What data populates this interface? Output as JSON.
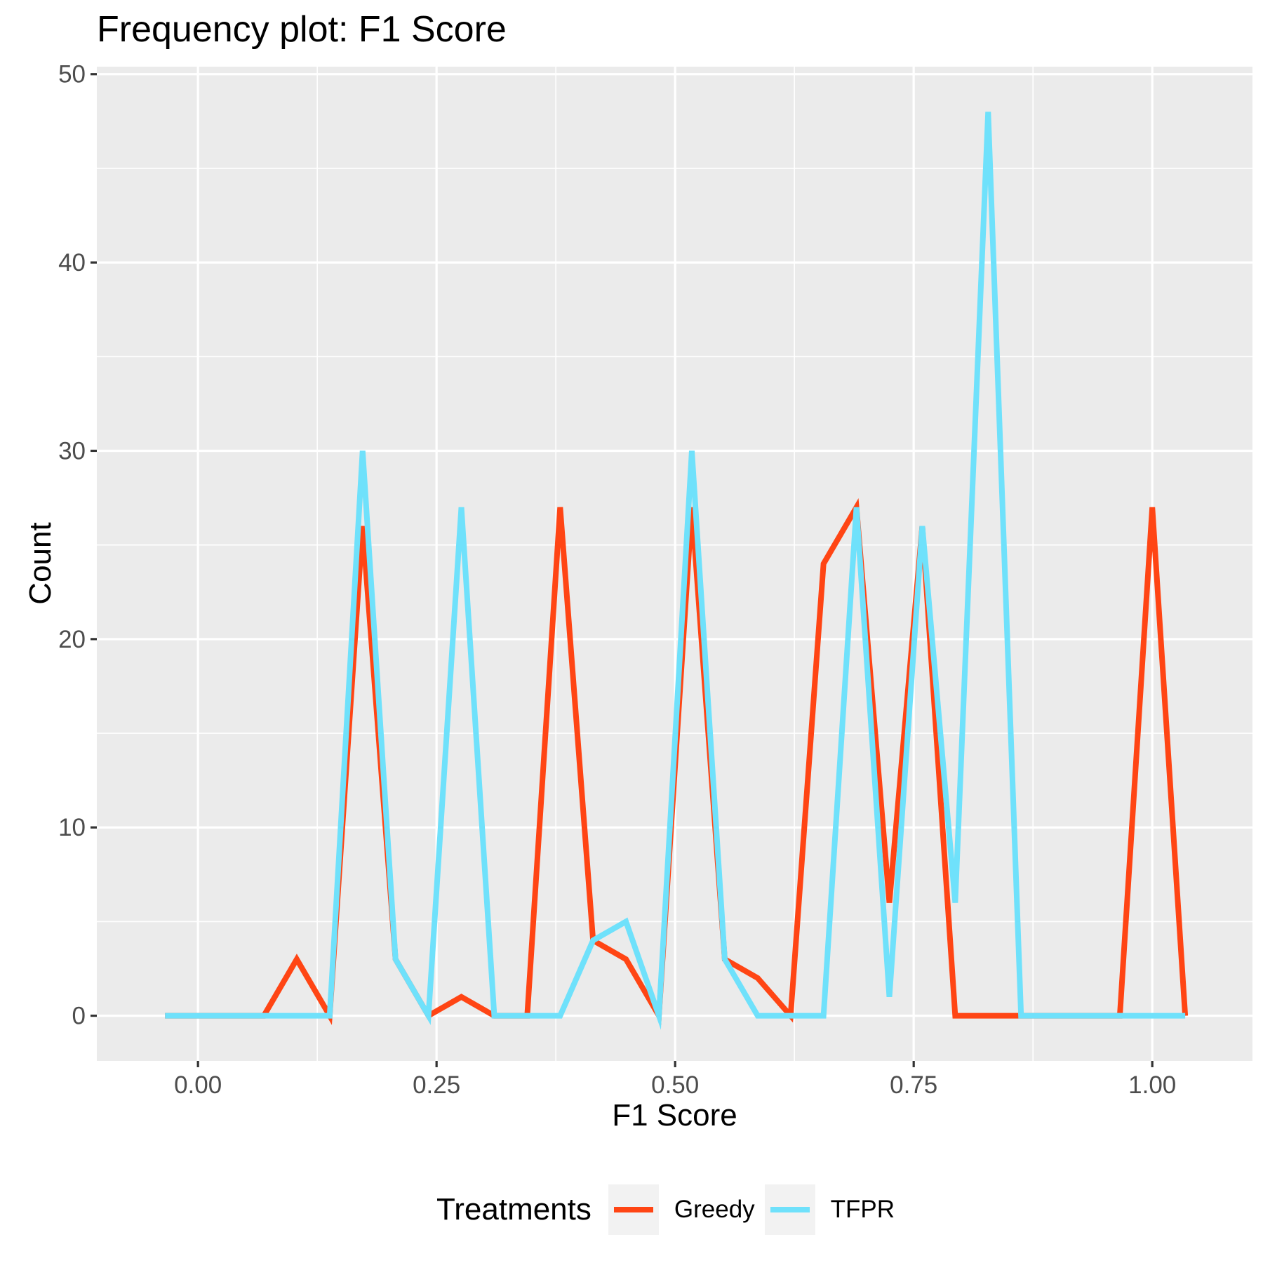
{
  "chart_data": {
    "type": "line",
    "title": "Frequency plot: F1 Score",
    "xlabel": "F1 Score",
    "ylabel": "Count",
    "xlim": [
      -0.106,
      1.105
    ],
    "ylim": [
      -2.4,
      50.4
    ],
    "x_ticks": [
      0.0,
      0.25,
      0.5,
      0.75,
      1.0
    ],
    "x_tick_labels": [
      "0.00",
      "0.25",
      "0.50",
      "0.75",
      "1.00"
    ],
    "y_ticks": [
      0,
      10,
      20,
      30,
      40,
      50
    ],
    "y_tick_labels": [
      "0",
      "10",
      "20",
      "30",
      "40",
      "50"
    ],
    "grid": true,
    "legend": {
      "title": "Treatments",
      "position": "bottom"
    },
    "x": [
      -0.0345,
      0.0,
      0.0345,
      0.069,
      0.1035,
      0.138,
      0.1725,
      0.207,
      0.2415,
      0.276,
      0.3105,
      0.345,
      0.3795,
      0.414,
      0.4485,
      0.483,
      0.5175,
      0.552,
      0.5865,
      0.621,
      0.6555,
      0.69,
      0.7245,
      0.759,
      0.7935,
      0.828,
      0.8625,
      0.897,
      0.9315,
      0.966,
      1.0,
      1.0345
    ],
    "series": [
      {
        "name": "Greedy",
        "color": "#ff4514",
        "values": [
          0,
          0,
          0,
          0,
          3,
          0,
          26,
          3,
          0,
          1,
          0,
          0,
          27,
          4,
          3,
          0,
          27,
          3,
          2,
          0,
          24,
          27,
          6,
          26,
          0,
          0,
          0,
          0,
          0,
          0,
          27,
          0
        ]
      },
      {
        "name": "TFPR",
        "color": "#6fe1fb",
        "values": [
          0,
          0,
          0,
          0,
          0,
          0,
          30,
          3,
          0,
          27,
          0,
          0,
          0,
          4,
          5,
          0,
          30,
          3,
          0,
          0,
          0,
          27,
          1,
          26,
          6,
          48,
          0,
          0,
          0,
          0,
          0,
          0
        ]
      }
    ]
  }
}
